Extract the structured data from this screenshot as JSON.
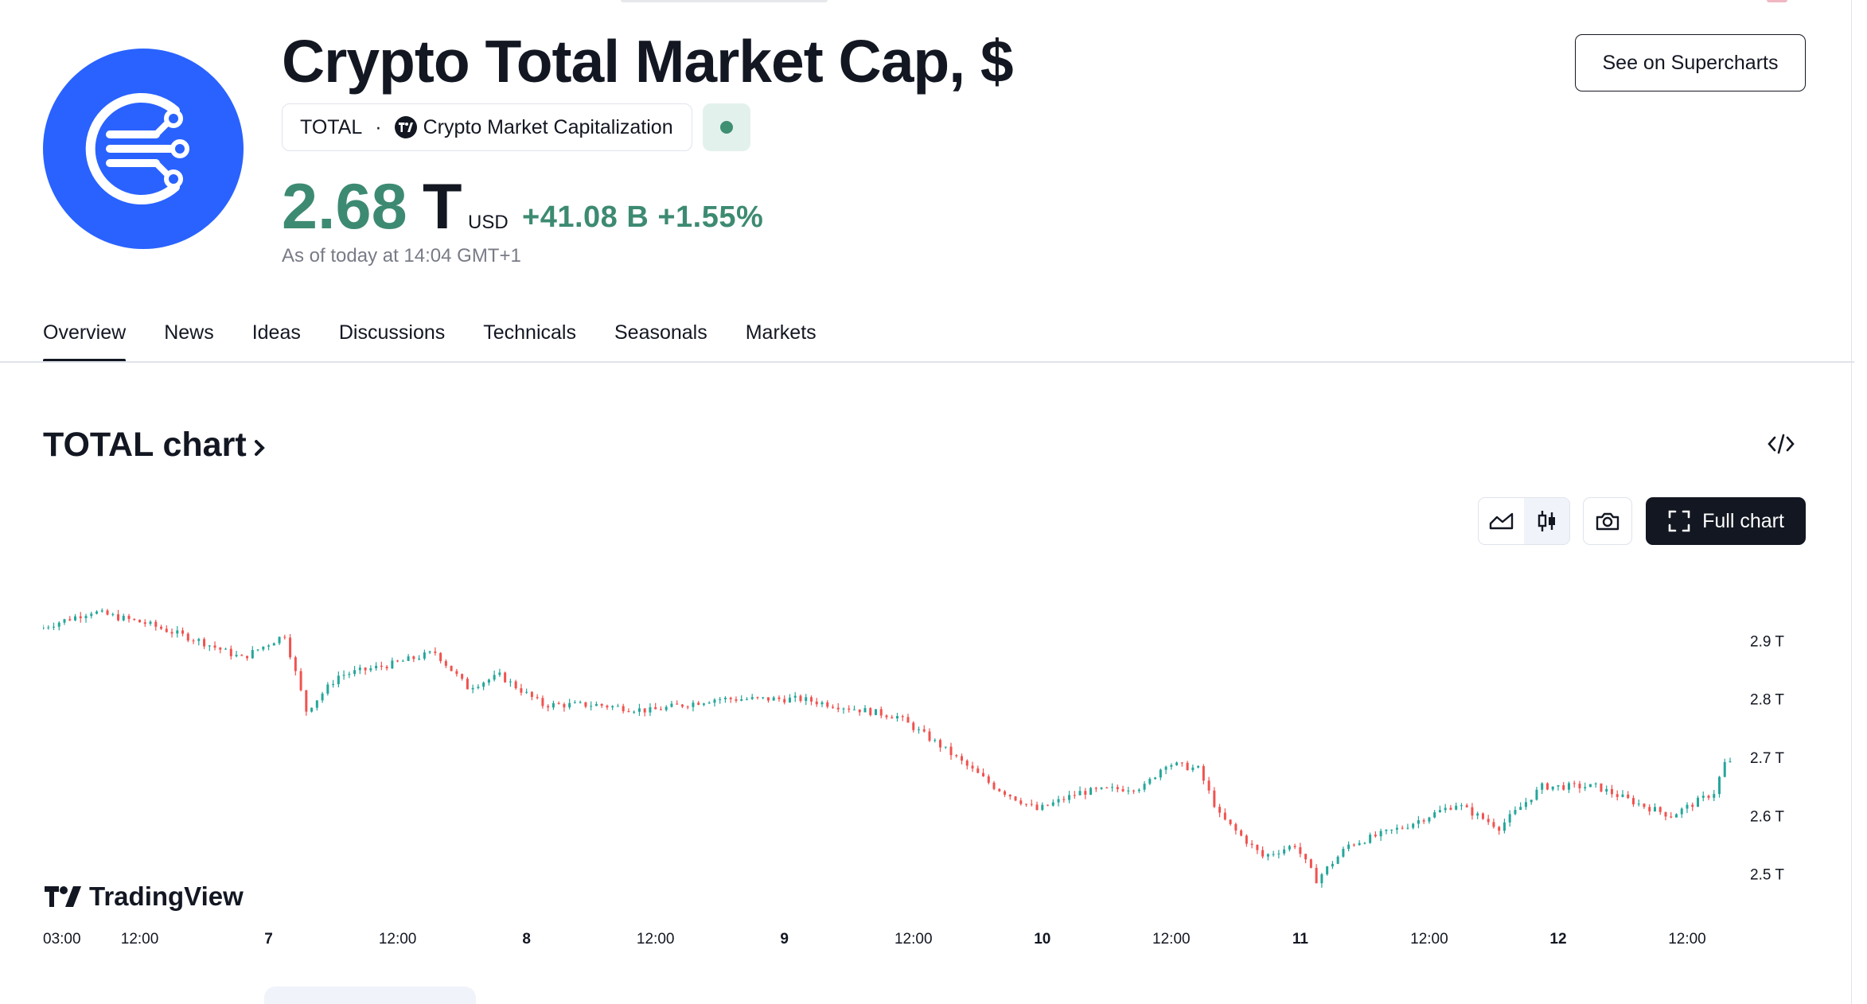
{
  "header": {
    "title": "Crypto Total Market Cap, $",
    "symbol": "TOTAL",
    "separator": "·",
    "source": "Crypto Market Capitalization",
    "price": "2.68",
    "price_unit": "T",
    "currency": "USD",
    "change": "+41.08 B +1.55%",
    "as_of": "As of today at 14:04 GMT+1",
    "supercharts_button": "See on Supercharts"
  },
  "tabs": [
    "Overview",
    "News",
    "Ideas",
    "Discussions",
    "Technicals",
    "Seasonals",
    "Markets"
  ],
  "chart_section": {
    "title": "TOTAL chart",
    "full_chart_button": "Full chart",
    "brand": "TradingView"
  },
  "colors": {
    "accent_green": "#3d8a72",
    "up_candle": "#26a69a",
    "down_candle": "#ef5350",
    "logo_blue": "#2962ff",
    "text": "#131722",
    "muted": "#787b86"
  },
  "icons": {
    "logo": "crypto-total-logo-icon",
    "source_badge": "tradingview-badge-icon",
    "embed": "code-embed-icon",
    "area": "area-chart-icon",
    "candles": "candlestick-icon",
    "snapshot": "camera-icon",
    "fullscreen": "fullscreen-icon"
  },
  "chart_data": {
    "type": "candlestick",
    "title": "",
    "xlabel": "",
    "ylabel": "",
    "y_unit": "T",
    "ylim": [
      2.43,
      3.03
    ],
    "yticks": [
      "2.9 T",
      "2.8 T",
      "2.7 T",
      "2.6 T",
      "2.5 T"
    ],
    "ytick_values": [
      2.9,
      2.8,
      2.7,
      2.6,
      2.5
    ],
    "xticks": [
      "03:00",
      "12:00",
      "7",
      "12:00",
      "8",
      "12:00",
      "9",
      "12:00",
      "10",
      "12:00",
      "11",
      "12:00",
      "12",
      "12:00"
    ],
    "xticks_bold": [
      false,
      false,
      true,
      false,
      true,
      false,
      true,
      false,
      true,
      false,
      true,
      false,
      true,
      false
    ],
    "xtick_hours": [
      3,
      12,
      24,
      36,
      48,
      60,
      72,
      84,
      96,
      108,
      120,
      132,
      144,
      156
    ],
    "x_range_hours": [
      3,
      160
    ],
    "grid": false,
    "approx_close_path": [
      {
        "h": 3,
        "v": 2.92
      },
      {
        "h": 8,
        "v": 2.95
      },
      {
        "h": 13,
        "v": 2.93
      },
      {
        "h": 18,
        "v": 2.9
      },
      {
        "h": 22,
        "v": 2.87
      },
      {
        "h": 26,
        "v": 2.91
      },
      {
        "h": 28,
        "v": 2.78
      },
      {
        "h": 31,
        "v": 2.84
      },
      {
        "h": 36,
        "v": 2.86
      },
      {
        "h": 40,
        "v": 2.88
      },
      {
        "h": 43,
        "v": 2.82
      },
      {
        "h": 46,
        "v": 2.84
      },
      {
        "h": 50,
        "v": 2.79
      },
      {
        "h": 55,
        "v": 2.79
      },
      {
        "h": 60,
        "v": 2.78
      },
      {
        "h": 66,
        "v": 2.8
      },
      {
        "h": 74,
        "v": 2.8
      },
      {
        "h": 83,
        "v": 2.77
      },
      {
        "h": 87,
        "v": 2.72
      },
      {
        "h": 92,
        "v": 2.65
      },
      {
        "h": 96,
        "v": 2.61
      },
      {
        "h": 100,
        "v": 2.64
      },
      {
        "h": 106,
        "v": 2.65
      },
      {
        "h": 108,
        "v": 2.69
      },
      {
        "h": 111,
        "v": 2.68
      },
      {
        "h": 113,
        "v": 2.6
      },
      {
        "h": 117,
        "v": 2.53
      },
      {
        "h": 120,
        "v": 2.55
      },
      {
        "h": 122,
        "v": 2.49
      },
      {
        "h": 125,
        "v": 2.55
      },
      {
        "h": 130,
        "v": 2.58
      },
      {
        "h": 135,
        "v": 2.62
      },
      {
        "h": 139,
        "v": 2.58
      },
      {
        "h": 143,
        "v": 2.65
      },
      {
        "h": 148,
        "v": 2.65
      },
      {
        "h": 152,
        "v": 2.62
      },
      {
        "h": 155,
        "v": 2.6
      },
      {
        "h": 159,
        "v": 2.64
      },
      {
        "h": 160,
        "v": 2.69
      }
    ]
  }
}
